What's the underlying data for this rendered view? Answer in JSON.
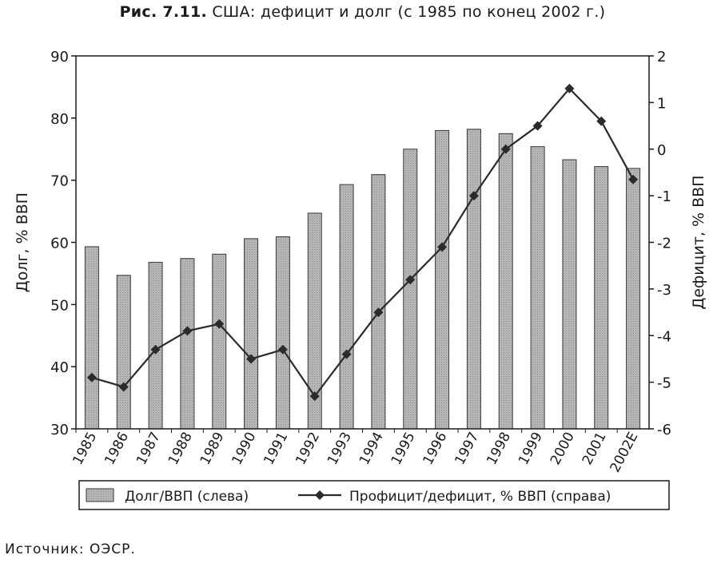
{
  "figure": {
    "number": "Рис. 7.11.",
    "caption": "США: дефицит и долг (с 1985 по конец 2002 г.)",
    "source": "Источник: ОЭСР."
  },
  "colors": {
    "bar_fill": "#b5b5b5",
    "bar_stroke": "#3a3a3a",
    "line": "#2b2b2b",
    "axis": "#1a1a1a"
  },
  "chart_data": {
    "type": "bar+line",
    "categories": [
      "1985",
      "1986",
      "1987",
      "1988",
      "1989",
      "1990",
      "1991",
      "1992",
      "1993",
      "1994",
      "1995",
      "1996",
      "1997",
      "1998",
      "1999",
      "2000",
      "2001",
      "2002E"
    ],
    "series": [
      {
        "name": "Долг/ВВП (слева)",
        "type": "bar",
        "axis": "left",
        "values": [
          59.3,
          54.7,
          56.8,
          57.4,
          58.1,
          60.6,
          60.9,
          64.7,
          69.3,
          70.9,
          75.0,
          78.0,
          78.2,
          77.5,
          75.4,
          73.3,
          72.2,
          71.9
        ]
      },
      {
        "name": "Профицит/дефицит, % ВВП (справа)",
        "type": "line",
        "axis": "right",
        "marker": "diamond",
        "values": [
          -4.9,
          -5.1,
          -4.3,
          -3.9,
          -3.75,
          -4.5,
          -4.3,
          -5.3,
          -4.4,
          -3.5,
          -2.8,
          -2.1,
          -1.0,
          0.0,
          0.5,
          1.3,
          0.6,
          -0.65
        ]
      }
    ],
    "y_left": {
      "label": "Долг, % ВВП",
      "min": 30,
      "max": 90,
      "ticks": [
        30,
        40,
        50,
        60,
        70,
        80,
        90
      ]
    },
    "y_right": {
      "label": "Дефицит, % ВВП",
      "min": -6,
      "max": 2,
      "ticks": [
        -6,
        -5,
        -4,
        -3,
        -2,
        -1,
        0,
        1,
        2
      ]
    },
    "legend": {
      "position": "bottom",
      "items": [
        "Долг/ВВП (слева)",
        "Профицит/дефицит, % ВВП (справа)"
      ]
    },
    "grid": false
  }
}
